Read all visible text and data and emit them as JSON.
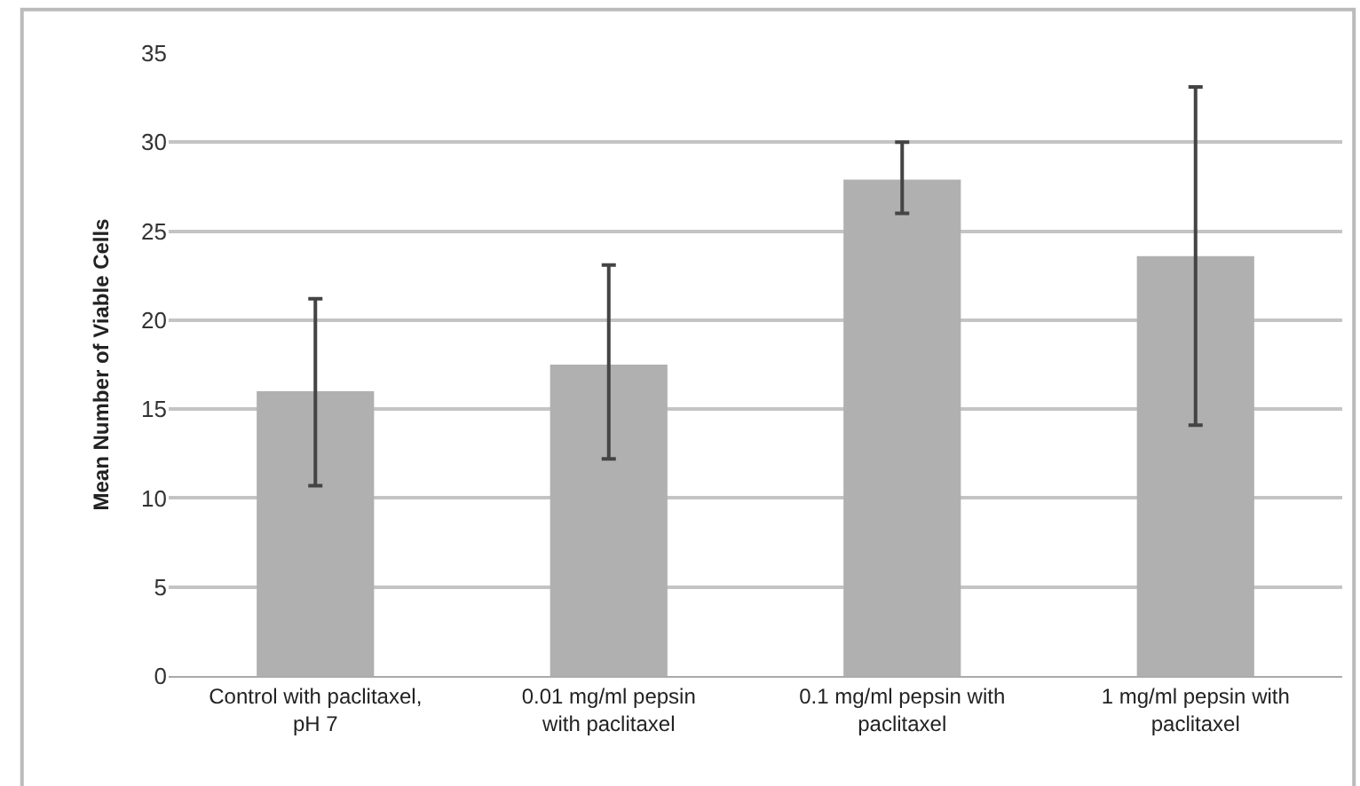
{
  "chart_data": {
    "type": "bar",
    "ylabel": "Mean Number of Viable Cells",
    "categories": [
      "Control with paclitaxel,\npH 7",
      "0.01 mg/ml pepsin\nwith paclitaxel",
      "0.1 mg/ml pepsin with\npaclitaxel",
      "1 mg/ml pepsin with\npaclitaxel"
    ],
    "values": [
      16.0,
      17.5,
      27.9,
      23.6
    ],
    "errors": [
      [
        10.7,
        21.2
      ],
      [
        12.2,
        23.1
      ],
      [
        26.0,
        30.0
      ],
      [
        14.1,
        33.1
      ]
    ],
    "color": "#b0b0b0",
    "ylim": [
      0,
      35
    ],
    "yticks": [
      0,
      5,
      10,
      15,
      20,
      25,
      30,
      35
    ],
    "grid": "y"
  }
}
